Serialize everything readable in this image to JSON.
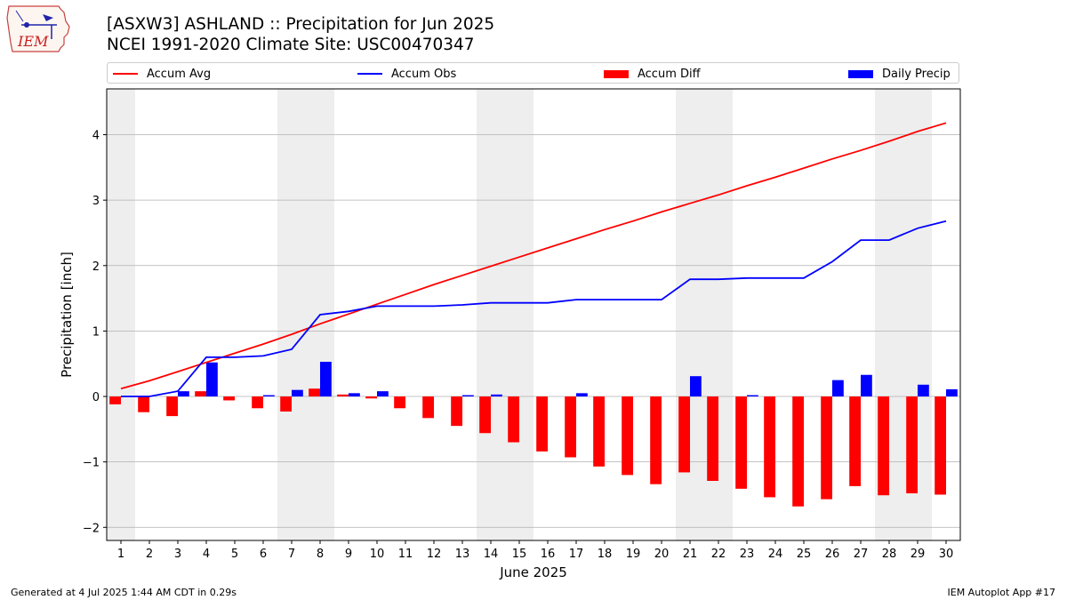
{
  "header": {
    "title_line1": "[ASXW3] ASHLAND :: Precipitation for Jun 2025",
    "title_line2": "NCEI 1991-2020 Climate Site: USC00470347"
  },
  "logo": {
    "text": "IEM"
  },
  "footer": {
    "left": "Generated at 4 Jul 2025 1:44 AM CDT in 0.29s",
    "right": "IEM Autoplot App #17"
  },
  "colors": {
    "avg": "#ff0000",
    "obs": "#0000ff",
    "diff": "#ff0000",
    "daily": "#0000ff",
    "weekend_band": "#eeeeee",
    "grid": "#b0b0b0"
  },
  "chart_data": {
    "type": "bar",
    "title": "[ASXW3] ASHLAND :: Precipitation for Jun 2025",
    "subtitle": "NCEI 1991-2020 Climate Site: USC00470347",
    "xlabel": "June 2025",
    "ylabel": "Precipitation [inch]",
    "xlim": [
      0.5,
      30.5
    ],
    "ylim": [
      -2.2,
      4.7
    ],
    "yticks": [
      -2,
      -1,
      0,
      1,
      2,
      3,
      4
    ],
    "ytick_labels": [
      "−2",
      "−1",
      "0",
      "1",
      "2",
      "3",
      "4"
    ],
    "grid": "horizontal",
    "legend_position": "top",
    "x": [
      1,
      2,
      3,
      4,
      5,
      6,
      7,
      8,
      9,
      10,
      11,
      12,
      13,
      14,
      15,
      16,
      17,
      18,
      19,
      20,
      21,
      22,
      23,
      24,
      25,
      26,
      27,
      28,
      29,
      30
    ],
    "shaded_days": [
      1,
      7,
      8,
      14,
      15,
      21,
      22,
      28,
      29
    ],
    "series": [
      {
        "name": "Accum Avg",
        "kind": "line",
        "values": [
          0.12,
          0.24,
          0.38,
          0.52,
          0.66,
          0.8,
          0.95,
          1.11,
          1.26,
          1.41,
          1.56,
          1.71,
          1.85,
          1.99,
          2.13,
          2.27,
          2.41,
          2.55,
          2.68,
          2.82,
          2.95,
          3.08,
          3.22,
          3.35,
          3.49,
          3.63,
          3.76,
          3.9,
          4.05,
          4.18
        ]
      },
      {
        "name": "Accum Obs",
        "kind": "line",
        "values": [
          0.0,
          0.0,
          0.08,
          0.6,
          0.6,
          0.62,
          0.72,
          1.25,
          1.3,
          1.38,
          1.38,
          1.38,
          1.4,
          1.43,
          1.43,
          1.43,
          1.48,
          1.48,
          1.48,
          1.48,
          1.79,
          1.79,
          1.81,
          1.81,
          1.81,
          2.06,
          2.39,
          2.39,
          2.57,
          2.68
        ]
      },
      {
        "name": "Accum Diff",
        "kind": "bar",
        "values": [
          -0.12,
          -0.24,
          -0.3,
          0.08,
          -0.06,
          -0.18,
          -0.23,
          0.12,
          0.03,
          -0.03,
          -0.18,
          -0.33,
          -0.45,
          -0.56,
          -0.7,
          -0.84,
          -0.93,
          -1.07,
          -1.2,
          -1.34,
          -1.16,
          -1.29,
          -1.41,
          -1.54,
          -1.68,
          -1.57,
          -1.37,
          -1.51,
          -1.48,
          -1.5
        ]
      },
      {
        "name": "Daily Precip",
        "kind": "bar",
        "values": [
          0.0,
          0.0,
          0.08,
          0.52,
          0.0,
          0.02,
          0.1,
          0.53,
          0.05,
          0.08,
          0.0,
          0.0,
          0.02,
          0.03,
          0.0,
          0.0,
          0.05,
          0.0,
          0.0,
          0.0,
          0.31,
          0.0,
          0.02,
          0.0,
          0.0,
          0.25,
          0.33,
          0.0,
          0.18,
          0.11
        ]
      }
    ]
  }
}
